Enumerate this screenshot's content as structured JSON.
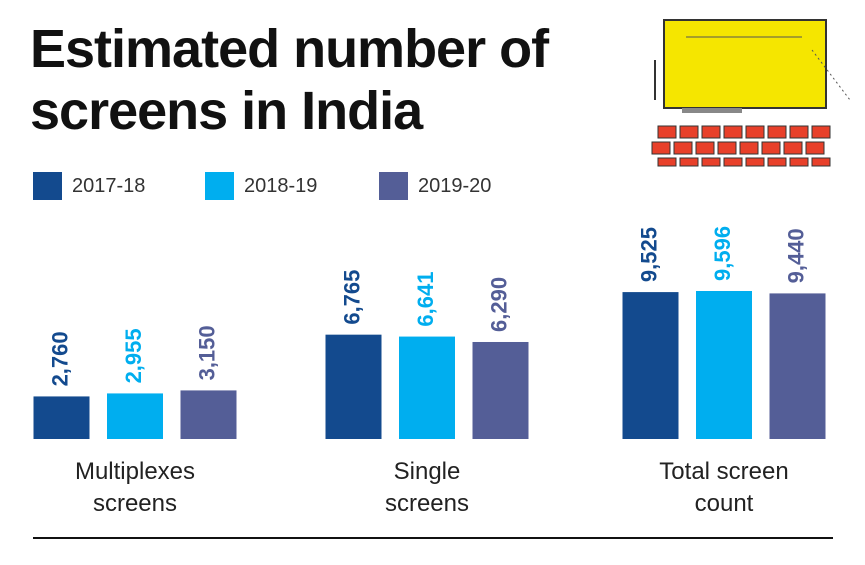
{
  "chart_data": {
    "type": "bar",
    "title": "Estimated number of\nscreens in India",
    "categories": [
      "Multiplexes\nscreens",
      "Single\nscreens",
      "Total screen\ncount"
    ],
    "series": [
      {
        "name": "2017-18",
        "color": "#134a8e",
        "values": [
          2760,
          6765,
          9525
        ],
        "value_labels": [
          "2,760",
          "6,765",
          "9,525"
        ]
      },
      {
        "name": "2018-19",
        "color": "#00aeef",
        "values": [
          2955,
          6641,
          9596
        ],
        "value_labels": [
          "2,955",
          "6,641",
          "9,596"
        ]
      },
      {
        "name": "2019-20",
        "color": "#545e97",
        "values": [
          3150,
          6290,
          9440
        ],
        "value_labels": [
          "3,150",
          "6,290",
          "9,440"
        ]
      }
    ]
  }
}
